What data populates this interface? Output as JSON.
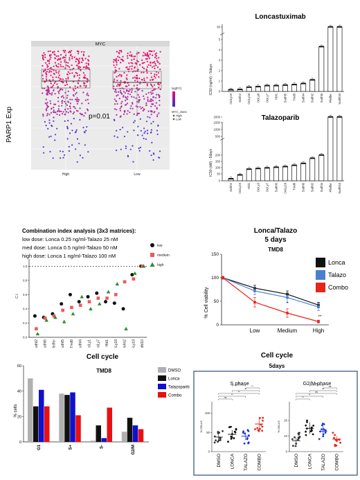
{
  "chart_data": [
    {
      "id": "parp1-myc",
      "type": "scatter",
      "title": "MYC",
      "ylabel": "PARP1 Exp",
      "categories": [
        "High",
        "Low"
      ],
      "annotation": "p=0.01",
      "legend_title": "log(FC)",
      "legend_title2": "MYC_class",
      "legend_items": [
        "High",
        "Low"
      ],
      "colors": {
        "high": "#e8106e",
        "low": "#5b35d6",
        "mid": "#b12aa0"
      }
    },
    {
      "id": "loncastuximab-ic50",
      "type": "bar",
      "title": "Loncastuximab",
      "ylabel": "IC50 (ng/ml) - 5days",
      "yticks": [
        "0",
        "1",
        "2",
        "3",
        "4",
        "5",
        "50"
      ],
      "categories": [
        "OciLy19",
        "Dohh2",
        "OciLy18",
        "OciLy8",
        "OciLy7",
        "Hbl1",
        "Sudhl5",
        "Tmd8",
        "Sudhl4",
        "Sudhl2",
        "Sudhl6",
        "Pfeiffer",
        "Sudhl10"
      ],
      "values": [
        0.15,
        0.18,
        0.4,
        0.45,
        0.55,
        0.55,
        0.6,
        0.65,
        0.75,
        1.1,
        4.3,
        50,
        50
      ]
    },
    {
      "id": "talazoparib-ic50",
      "type": "bar",
      "title": "Talazoparib",
      "ylabel": "IC50 (nM) - 5days",
      "yticks": [
        "0",
        "50",
        "100",
        "150",
        "200",
        "500",
        "1000",
        "1500",
        "2000"
      ],
      "categories": [
        "Dohh2",
        "OciLy19",
        "Hbl1",
        "OciLy3",
        "OciLy7",
        "Sudhl5",
        "OciLy18",
        "Tmd8",
        "Sudhl6",
        "Sudhl2",
        "Sudhl4",
        "Pfeiffer",
        "Sudhl10"
      ],
      "values": [
        15,
        45,
        90,
        95,
        100,
        105,
        110,
        120,
        135,
        175,
        200,
        2000,
        2000
      ]
    },
    {
      "id": "combination-index",
      "type": "scatter",
      "title": "Combination index analysis (3x3 matrices):",
      "notes": [
        "low dose: Lonca 0.25 ng/ml-Talazo 25 nM",
        "med dose: Lonca 0.5 ng/ml-Talazo 50 nM",
        "high dose: Lonca 1 ng/ml-Talazo 100 nM"
      ],
      "ylabel": "C.I.",
      "yticks": [
        "0.0",
        "0.2",
        "0.4",
        "0.6",
        "0.8",
        "1.0"
      ],
      "ylim": [
        0,
        1.1
      ],
      "categories": [
        "Sudhl2",
        "Sudhl6",
        "Pfeiffer",
        "Sudhl5",
        "Tmd8",
        "Sudhl4",
        "OciLy1",
        "OciLy7",
        "Hbl1",
        "OciLy18",
        "Dohh2",
        "OciLy19",
        "Sudhl10"
      ],
      "series": [
        {
          "name": "low",
          "marker": "circle",
          "color": "#111111",
          "values": [
            0.3,
            0.28,
            0.33,
            0.47,
            0.6,
            0.5,
            0.57,
            0.62,
            0.5,
            0.48,
            0.4,
            0.88,
            1.0
          ]
        },
        {
          "name": "medium",
          "marker": "square",
          "color": "#f2565a",
          "values": [
            0.12,
            0.27,
            0.3,
            0.38,
            0.42,
            0.45,
            0.5,
            0.55,
            0.55,
            0.6,
            0.78,
            0.82,
            1.0
          ]
        },
        {
          "name": "high",
          "marker": "triangle",
          "color": "#2e8b2e",
          "values": [
            0.05,
            0.24,
            0.28,
            0.22,
            0.33,
            0.57,
            0.4,
            0.47,
            0.64,
            0.75,
            0.12,
            0.9,
            1.0
          ]
        }
      ]
    },
    {
      "id": "lonca-talazo-viability",
      "type": "line",
      "title": "Lonca/Talazo",
      "subtitle": "5 days",
      "panel_label": "TMD8",
      "ylabel": "% Cell viability",
      "yticks": [
        "0",
        "50",
        "100",
        "150"
      ],
      "ylim": [
        0,
        150
      ],
      "x": [
        "",
        "Low",
        "Medium",
        "High"
      ],
      "series": [
        {
          "name": "Lonca",
          "color": "#111111",
          "values": [
            100,
            78,
            65,
            42
          ],
          "errors": [
            3,
            6,
            7,
            6
          ]
        },
        {
          "name": "Talazo",
          "color": "#4a7fd0",
          "values": [
            100,
            72,
            58,
            38
          ],
          "errors": [
            3,
            8,
            10,
            8
          ]
        },
        {
          "name": "Combo",
          "color": "#e8251b",
          "values": [
            100,
            48,
            25,
            7
          ],
          "errors": [
            3,
            10,
            9,
            3
          ]
        }
      ],
      "annotations": [
        "*",
        "**"
      ]
    },
    {
      "id": "cell-cycle-tmd8",
      "type": "bar",
      "title": "Cell cycle",
      "panel_label": "TMD8",
      "ylabel": "% cells",
      "yticks": [
        "0",
        "20",
        "40",
        "60"
      ],
      "ylim": [
        0,
        60
      ],
      "categories": [
        "G1",
        "S+",
        "S-",
        "G2/M"
      ],
      "series": [
        {
          "name": "DMSO",
          "color": "#b0b0b0",
          "values": [
            50,
            38,
            1,
            8
          ]
        },
        {
          "name": "Lonca",
          "color": "#111111",
          "values": [
            28,
            37,
            13,
            19
          ]
        },
        {
          "name": "Talazoparib",
          "color": "#1010d0",
          "values": [
            41,
            39,
            3,
            13
          ]
        },
        {
          "name": "Combo",
          "color": "#e81010",
          "values": [
            28,
            21,
            27,
            10
          ]
        }
      ]
    },
    {
      "id": "cell-cycle-5days",
      "type": "scatter",
      "title": "Cell cycle",
      "subtitle": "5days",
      "panels": [
        {
          "title": "S phase",
          "ylabel": "% CELLS",
          "yticks": [
            "0",
            "50",
            "100"
          ],
          "ylim": [
            0,
            130
          ],
          "categories": [
            "DMSO",
            "LONCA",
            "TALAZO",
            "COMBO"
          ],
          "colors": [
            "#333333",
            "#111111",
            "#1a33cc",
            "#e8251b"
          ],
          "means": [
            38,
            45,
            40,
            72
          ],
          "brackets": [
            "ns",
            "**",
            "**",
            "**",
            "**",
            "**"
          ]
        },
        {
          "title": "G2/M phase",
          "ylabel": "% CELLS",
          "yticks": [
            "0",
            "10",
            "20"
          ],
          "ylim": [
            0,
            32
          ],
          "categories": [
            "DMSO",
            "LONCA",
            "TALAZO",
            "COMBO"
          ],
          "colors": [
            "#333333",
            "#111111",
            "#1a33cc",
            "#e8251b"
          ],
          "means": [
            7,
            15,
            13,
            8
          ],
          "brackets": [
            "**",
            "**",
            "ns",
            "**",
            "ns",
            "ns"
          ]
        }
      ]
    }
  ]
}
